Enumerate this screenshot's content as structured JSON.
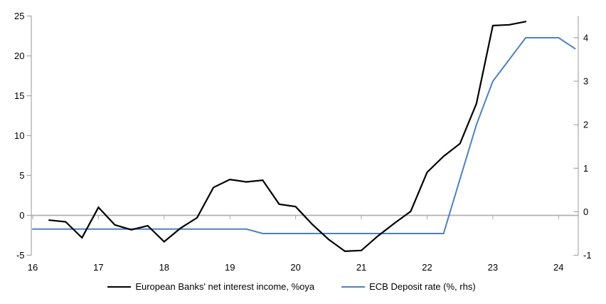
{
  "chart_data": {
    "type": "line",
    "x_axis": {
      "min": 16,
      "max": 24.3,
      "tick_values": [
        16,
        17,
        18,
        19,
        20,
        21,
        22,
        23,
        24
      ],
      "tick_labels": [
        "16",
        "17",
        "18",
        "19",
        "20",
        "21",
        "22",
        "23",
        "24"
      ]
    },
    "left_axis": {
      "min": -5,
      "max": 25,
      "ticks": [
        25,
        20,
        15,
        10,
        5,
        0,
        -5
      ]
    },
    "right_axis": {
      "min": -1,
      "max": 4.5,
      "ticks": [
        4,
        3,
        2,
        1,
        0,
        -1
      ]
    },
    "zero_line": true,
    "legend_position": "bottom",
    "series": [
      {
        "name": "European Banks' net interest income, %oya",
        "axis": "left",
        "color": "#000000",
        "x": [
          16.25,
          16.5,
          16.75,
          17.0,
          17.25,
          17.5,
          17.75,
          18.0,
          18.25,
          18.5,
          18.75,
          19.0,
          19.25,
          19.5,
          19.75,
          20.0,
          20.25,
          20.5,
          20.75,
          21.0,
          21.25,
          21.5,
          21.75,
          22.0,
          22.25,
          22.5,
          22.75,
          23.0,
          23.25,
          23.5
        ],
        "values": [
          -0.6,
          -0.8,
          -2.8,
          1.0,
          -1.2,
          -1.8,
          -1.3,
          -3.3,
          -1.6,
          -0.3,
          3.5,
          4.5,
          4.2,
          4.4,
          1.4,
          1.1,
          -1.1,
          -3.0,
          -4.5,
          -4.4,
          -2.6,
          -1.0,
          0.5,
          5.4,
          7.4,
          9.0,
          14.0,
          23.8,
          23.9,
          24.3
        ]
      },
      {
        "name": "ECB Deposit rate (%, rhs)",
        "axis": "right",
        "color": "#4f81bd",
        "x": [
          16.0,
          16.25,
          16.5,
          16.75,
          17.0,
          17.25,
          17.5,
          17.75,
          18.0,
          18.25,
          18.5,
          18.75,
          19.0,
          19.25,
          19.5,
          19.75,
          20.0,
          20.25,
          20.5,
          20.75,
          21.0,
          21.25,
          21.5,
          21.75,
          22.0,
          22.25,
          22.5,
          22.75,
          23.0,
          23.25,
          23.5,
          23.75,
          24.0,
          24.25
        ],
        "values": [
          -0.4,
          -0.4,
          -0.4,
          -0.4,
          -0.4,
          -0.4,
          -0.4,
          -0.4,
          -0.4,
          -0.4,
          -0.4,
          -0.4,
          -0.4,
          -0.4,
          -0.5,
          -0.5,
          -0.5,
          -0.5,
          -0.5,
          -0.5,
          -0.5,
          -0.5,
          -0.5,
          -0.5,
          -0.5,
          -0.5,
          0.75,
          2.0,
          3.0,
          3.5,
          4.0,
          4.0,
          4.0,
          3.75
        ]
      }
    ]
  },
  "legend": {
    "items": [
      {
        "label": "European Banks' net interest income, %oya",
        "color": "#000000"
      },
      {
        "label": "ECB Deposit rate (%, rhs)",
        "color": "#4f81bd"
      }
    ]
  },
  "colors": {
    "background": "#ffffff",
    "axis": "#a6a6a6",
    "zero_line": "#b0b0b0",
    "text": "#000000"
  }
}
